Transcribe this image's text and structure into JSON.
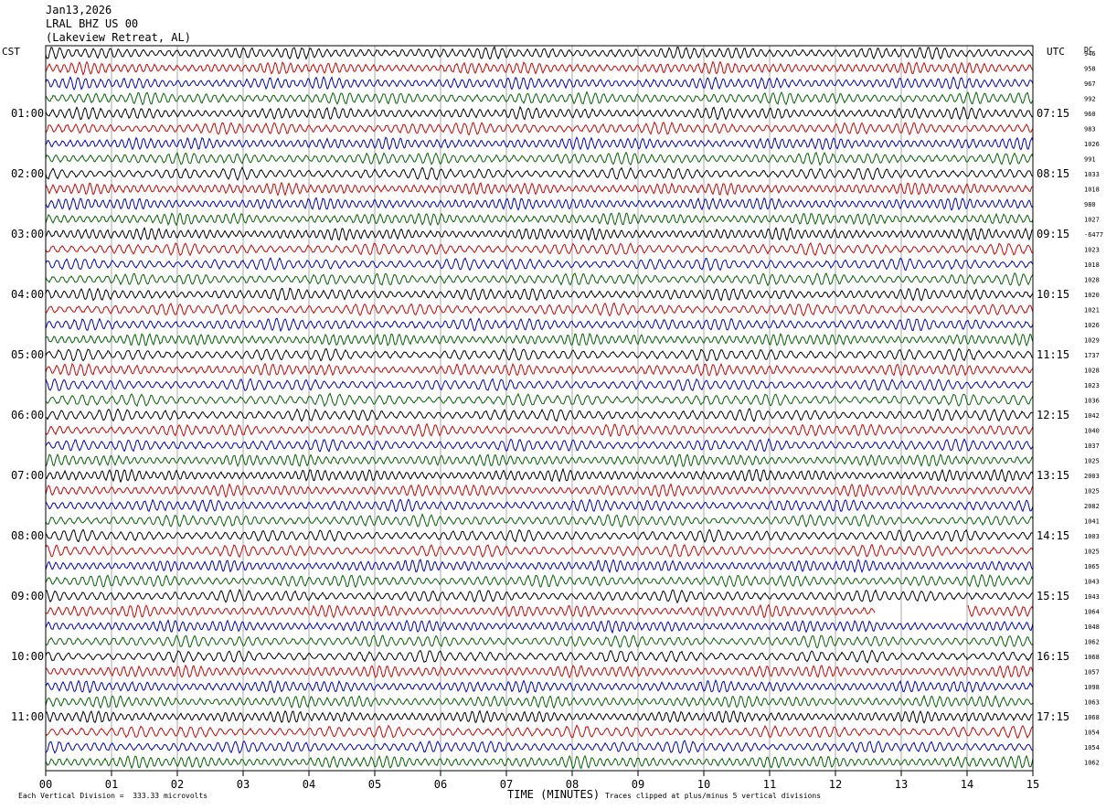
{
  "header": {
    "date": "Jan13,2026",
    "station": "LRAL BHZ US 00",
    "location": "(Lakeview Retreat, AL)"
  },
  "left_timezone": "CST",
  "right_timezone": "UTC",
  "dc_label": "DC",
  "footer": {
    "scale_note": "Each Vertical Division =  333.33 microvolts",
    "x_axis_title": "TIME (MINUTES)",
    "clip_note": "Traces clipped at plus/minus 5 vertical divisions"
  },
  "colors": {
    "trace_cycle": [
      "#000000",
      "#d40000",
      "#0000cc",
      "#006400"
    ],
    "gridline": "#aaaaaa"
  },
  "chart_data": {
    "type": "line",
    "title": "LRAL BHZ US 00",
    "xlabel": "TIME (MINUTES)",
    "xlim": [
      0,
      15
    ],
    "x_ticks": [
      "00",
      "01",
      "02",
      "03",
      "04",
      "05",
      "06",
      "07",
      "08",
      "09",
      "10",
      "11",
      "12",
      "13",
      "14",
      "15"
    ],
    "rows_per_hour": 4,
    "row_count": 48,
    "left_hour_labels": [
      "01:00",
      "02:00",
      "03:00",
      "04:00",
      "05:00",
      "06:00",
      "07:00",
      "08:00",
      "09:00",
      "10:00",
      "11:00"
    ],
    "right_hour_labels": [
      "07:15",
      "08:15",
      "09:15",
      "10:15",
      "11:15",
      "12:15",
      "13:15",
      "14:15",
      "15:15",
      "16:15",
      "17:15"
    ],
    "dc_offsets": [
      "946",
      "958",
      "967",
      "992",
      "960",
      "983",
      "1026",
      "991",
      "1033",
      "1018",
      "980",
      "1027",
      "-6477",
      "1023",
      "1018",
      "1028",
      "1020",
      "1021",
      "1026",
      "1029",
      "1737",
      "1028",
      "1023",
      "1036",
      "1042",
      "1040",
      "1037",
      "1025",
      "2003",
      "1025",
      "2082",
      "1041",
      "1003",
      "1025",
      "1065",
      "1043",
      "1043",
      "1064",
      "1048",
      "1062",
      "1068",
      "1057",
      "1098",
      "1063",
      "1068",
      "1054",
      "1054",
      "1062"
    ],
    "gap": {
      "row": 37,
      "start_min": 12.6,
      "end_min": 14.0
    }
  }
}
